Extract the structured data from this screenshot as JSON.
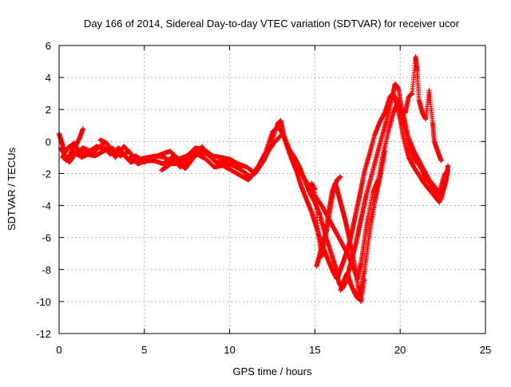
{
  "chart_data": {
    "type": "scatter",
    "title": "Day 166 of 2014, Sidereal Day-to-day VTEC variation (SDTVAR) for receiver ucor",
    "xlabel": "GPS time / hours",
    "ylabel": "SDTVAR / TECUs",
    "xlim": [
      0,
      25
    ],
    "ylim": [
      -12,
      6
    ],
    "x_ticks": [
      0,
      5,
      10,
      15,
      20,
      25
    ],
    "y_ticks": [
      -12,
      -10,
      -8,
      -6,
      -4,
      -2,
      0,
      2,
      4,
      6
    ],
    "x_tick_labels": [
      "0",
      "5",
      "10",
      "15",
      "20",
      "25"
    ],
    "y_tick_labels": [
      "-12",
      "-10",
      "-8",
      "-6",
      "-4",
      "-2",
      "0",
      "2",
      "4",
      "6"
    ],
    "grid": true,
    "marker": "+",
    "series": [
      {
        "name": "SDTVAR",
        "color": "#ff0000",
        "traces": [
          [
            [
              0.0,
              0.5
            ],
            [
              0.2,
              -0.2
            ],
            [
              0.4,
              -1.2
            ],
            [
              0.8,
              -0.6
            ],
            [
              1.2,
              -0.9
            ],
            [
              1.6,
              -0.5
            ],
            [
              2.0,
              -0.7
            ],
            [
              2.5,
              -0.2
            ],
            [
              3.0,
              -0.8
            ],
            [
              3.5,
              -0.4
            ],
            [
              4.0,
              -1.1
            ],
            [
              4.5,
              -0.9
            ],
            [
              5.0,
              -1.3
            ],
            [
              5.5,
              -1.0
            ],
            [
              6.0,
              -0.8
            ],
            [
              6.5,
              -0.6
            ],
            [
              7.0,
              -1.1
            ],
            [
              7.5,
              -0.9
            ],
            [
              8.0,
              -0.4
            ],
            [
              8.5,
              -0.5
            ],
            [
              9.0,
              -0.9
            ],
            [
              9.5,
              -1.0
            ],
            [
              10.0,
              -1.1
            ],
            [
              10.5,
              -1.4
            ],
            [
              11.0,
              -1.6
            ],
            [
              11.5,
              -2.0
            ],
            [
              12.0,
              -1.2
            ],
            [
              12.4,
              -0.3
            ],
            [
              12.8,
              1.1
            ],
            [
              13.0,
              1.3
            ],
            [
              13.2,
              0.3
            ],
            [
              13.5,
              -0.5
            ],
            [
              13.8,
              -1.0
            ],
            [
              14.1,
              -1.6
            ],
            [
              14.4,
              -2.4
            ],
            [
              14.7,
              -3.2
            ],
            [
              15.0,
              -3.8
            ],
            [
              15.3,
              -4.6
            ],
            [
              15.6,
              -5.8
            ],
            [
              15.9,
              -6.8
            ],
            [
              16.2,
              -7.8
            ],
            [
              16.4,
              -8.8
            ],
            [
              16.6,
              -9.2
            ],
            [
              16.8,
              -8.8
            ],
            [
              17.0,
              -8.0
            ],
            [
              17.2,
              -7.2
            ],
            [
              17.4,
              -6.4
            ],
            [
              17.6,
              -5.4
            ],
            [
              17.8,
              -4.4
            ],
            [
              18.0,
              -3.4
            ],
            [
              18.3,
              -2.2
            ],
            [
              18.6,
              -1.0
            ],
            [
              18.9,
              0.2
            ],
            [
              19.2,
              1.3
            ],
            [
              19.5,
              2.6
            ],
            [
              19.7,
              3.6
            ],
            [
              19.9,
              3.3
            ],
            [
              20.1,
              2.0
            ],
            [
              20.3,
              0.8
            ],
            [
              20.6,
              -0.6
            ],
            [
              20.9,
              -1.2
            ],
            [
              21.2,
              -1.6
            ],
            [
              21.5,
              -2.3
            ],
            [
              21.8,
              -2.7
            ],
            [
              22.1,
              -3.2
            ],
            [
              22.4,
              -3.6
            ],
            [
              22.7,
              -2.4
            ],
            [
              22.8,
              -1.5
            ]
          ],
          [
            [
              0.1,
              -0.4
            ],
            [
              0.3,
              -0.8
            ],
            [
              0.6,
              -1.3
            ],
            [
              1.0,
              -0.7
            ],
            [
              1.4,
              -0.4
            ],
            [
              1.8,
              -0.6
            ],
            [
              2.2,
              -0.3
            ],
            [
              2.7,
              -0.5
            ],
            [
              3.2,
              -0.7
            ],
            [
              3.7,
              -0.7
            ],
            [
              4.2,
              -1.3
            ],
            [
              4.7,
              -1.1
            ],
            [
              5.2,
              -1.0
            ],
            [
              5.7,
              -0.9
            ],
            [
              6.2,
              -1.0
            ],
            [
              6.7,
              -1.4
            ],
            [
              7.2,
              -1.3
            ],
            [
              7.7,
              -0.8
            ],
            [
              8.2,
              -0.6
            ],
            [
              8.7,
              -0.8
            ],
            [
              9.2,
              -1.3
            ],
            [
              9.7,
              -1.3
            ],
            [
              10.2,
              -1.5
            ],
            [
              10.7,
              -1.8
            ],
            [
              11.2,
              -2.2
            ],
            [
              11.7,
              -1.5
            ],
            [
              12.1,
              -0.7
            ],
            [
              12.5,
              0.6
            ],
            [
              12.9,
              0.9
            ],
            [
              13.3,
              0.0
            ],
            [
              13.6,
              -1.0
            ],
            [
              13.9,
              -1.8
            ],
            [
              14.2,
              -2.8
            ],
            [
              14.5,
              -3.6
            ],
            [
              14.8,
              -4.4
            ],
            [
              15.1,
              -5.4
            ],
            [
              15.4,
              -6.4
            ],
            [
              15.7,
              -7.2
            ],
            [
              16.0,
              -8.0
            ],
            [
              16.3,
              -8.6
            ],
            [
              16.5,
              -8.0
            ],
            [
              16.7,
              -7.4
            ],
            [
              16.9,
              -6.8
            ],
            [
              17.1,
              -6.0
            ],
            [
              17.3,
              -5.0
            ],
            [
              17.5,
              -4.0
            ],
            [
              17.7,
              -3.0
            ],
            [
              17.9,
              -1.9
            ],
            [
              18.2,
              -0.8
            ],
            [
              18.5,
              0.4
            ],
            [
              18.8,
              1.2
            ],
            [
              19.1,
              1.8
            ],
            [
              19.4,
              2.8
            ],
            [
              19.6,
              3.0
            ],
            [
              19.8,
              2.4
            ],
            [
              20.0,
              1.4
            ],
            [
              20.2,
              0.2
            ],
            [
              20.5,
              -1.0
            ],
            [
              20.8,
              -1.6
            ],
            [
              21.1,
              -2.1
            ],
            [
              21.4,
              -2.6
            ],
            [
              21.7,
              -3.0
            ],
            [
              22.0,
              -3.4
            ],
            [
              22.3,
              -3.8
            ],
            [
              22.6,
              -2.8
            ],
            [
              22.8,
              -1.8
            ]
          ],
          [
            [
              0.2,
              -1.0
            ],
            [
              0.5,
              -0.4
            ],
            [
              0.9,
              -0.1
            ],
            [
              1.3,
              -1.0
            ],
            [
              1.7,
              -0.8
            ],
            [
              2.1,
              -0.9
            ],
            [
              2.6,
              -0.6
            ],
            [
              3.1,
              -0.4
            ],
            [
              3.6,
              -0.9
            ],
            [
              4.1,
              -0.6
            ],
            [
              4.6,
              -1.4
            ],
            [
              5.1,
              -1.2
            ],
            [
              5.6,
              -1.2
            ],
            [
              6.1,
              -1.4
            ],
            [
              6.6,
              -1.0
            ],
            [
              7.1,
              -1.6
            ],
            [
              7.6,
              -1.2
            ],
            [
              8.1,
              -0.8
            ],
            [
              8.6,
              -1.1
            ],
            [
              9.1,
              -1.6
            ],
            [
              9.6,
              -1.5
            ],
            [
              10.1,
              -1.8
            ],
            [
              10.6,
              -2.1
            ],
            [
              11.1,
              -2.4
            ],
            [
              11.6,
              -1.8
            ],
            [
              12.0,
              -1.0
            ],
            [
              12.6,
              -0.1
            ],
            [
              13.1,
              0.5
            ],
            [
              13.5,
              -0.7
            ],
            [
              13.9,
              -1.2
            ],
            [
              14.2,
              -2.0
            ],
            [
              14.6,
              -2.7
            ],
            [
              15.0,
              -3.4
            ],
            [
              15.4,
              -4.0
            ],
            [
              15.8,
              -4.8
            ],
            [
              16.2,
              -5.6
            ],
            [
              16.6,
              -6.4
            ],
            [
              17.0,
              -7.2
            ],
            [
              17.3,
              -8.0
            ],
            [
              17.5,
              -8.6
            ],
            [
              17.7,
              -7.6
            ],
            [
              17.9,
              -6.2
            ],
            [
              18.1,
              -4.8
            ],
            [
              18.4,
              -3.2
            ],
            [
              18.7,
              -2.4
            ],
            [
              19.0,
              -0.8
            ],
            [
              19.3,
              0.6
            ],
            [
              19.6,
              1.8
            ],
            [
              19.9,
              2.6
            ],
            [
              20.2,
              1.6
            ],
            [
              20.5,
              0.2
            ],
            [
              20.8,
              -0.6
            ],
            [
              21.1,
              -1.2
            ],
            [
              21.4,
              -1.8
            ],
            [
              21.7,
              -2.4
            ],
            [
              22.0,
              -2.8
            ],
            [
              22.3,
              -3.2
            ],
            [
              22.6,
              -2.0
            ]
          ],
          [
            [
              14.8,
              -2.6
            ],
            [
              15.0,
              -3.0
            ],
            [
              15.2,
              -5.8
            ],
            [
              15.4,
              -7.2
            ],
            [
              15.6,
              -6.0
            ],
            [
              15.8,
              -4.4
            ],
            [
              16.0,
              -3.2
            ],
            [
              16.2,
              -2.6
            ],
            [
              16.4,
              -3.4
            ],
            [
              16.6,
              -4.2
            ],
            [
              16.8,
              -5.0
            ],
            [
              17.0,
              -6.0
            ],
            [
              17.2,
              -7.0
            ],
            [
              17.4,
              -8.2
            ],
            [
              17.6,
              -9.6
            ],
            [
              17.7,
              -10.0
            ],
            [
              17.9,
              -8.6
            ]
          ],
          [
            [
              16.5,
              -9.3
            ],
            [
              16.7,
              -8.7
            ],
            [
              16.9,
              -8.2
            ],
            [
              17.1,
              -8.9
            ],
            [
              17.3,
              -9.4
            ],
            [
              17.5,
              -9.8
            ],
            [
              17.7,
              -9.2
            ],
            [
              17.9,
              -8.1
            ],
            [
              18.1,
              -6.5
            ],
            [
              18.3,
              -5.0
            ],
            [
              18.5,
              -3.8
            ],
            [
              18.7,
              -2.8
            ],
            [
              18.9,
              -1.8
            ],
            [
              19.1,
              -0.6
            ]
          ],
          [
            [
              15.1,
              -7.8
            ],
            [
              15.3,
              -7.0
            ],
            [
              15.5,
              -6.2
            ],
            [
              15.7,
              -5.5
            ],
            [
              15.9,
              -4.2
            ],
            [
              16.1,
              -3.0
            ],
            [
              16.3,
              -2.4
            ],
            [
              16.5,
              -2.2
            ]
          ],
          [
            [
              20.3,
              1.8
            ],
            [
              20.5,
              2.8
            ],
            [
              20.7,
              3.0
            ],
            [
              20.9,
              5.3
            ],
            [
              21.0,
              4.4
            ],
            [
              21.1,
              2.6
            ],
            [
              21.3,
              1.8
            ],
            [
              21.5,
              1.4
            ],
            [
              21.7,
              3.2
            ],
            [
              21.9,
              1.2
            ],
            [
              22.0,
              0.0
            ],
            [
              22.2,
              -0.6
            ],
            [
              22.4,
              -1.2
            ]
          ],
          [
            [
              1.4,
              0.8
            ],
            [
              1.2,
              0.2
            ],
            [
              1.0,
              -0.2
            ],
            [
              0.8,
              -0.4
            ],
            [
              0.6,
              -1.0
            ]
          ],
          [
            [
              2.4,
              0.1
            ],
            [
              2.8,
              -0.1
            ],
            [
              3.3,
              -1.0
            ],
            [
              3.8,
              -0.3
            ],
            [
              4.3,
              -0.9
            ]
          ],
          [
            [
              6.0,
              -1.8
            ],
            [
              6.4,
              -1.5
            ],
            [
              6.9,
              -1.2
            ],
            [
              7.4,
              -1.7
            ],
            [
              7.9,
              -1.0
            ],
            [
              8.4,
              -0.3
            ]
          ]
        ]
      }
    ]
  }
}
